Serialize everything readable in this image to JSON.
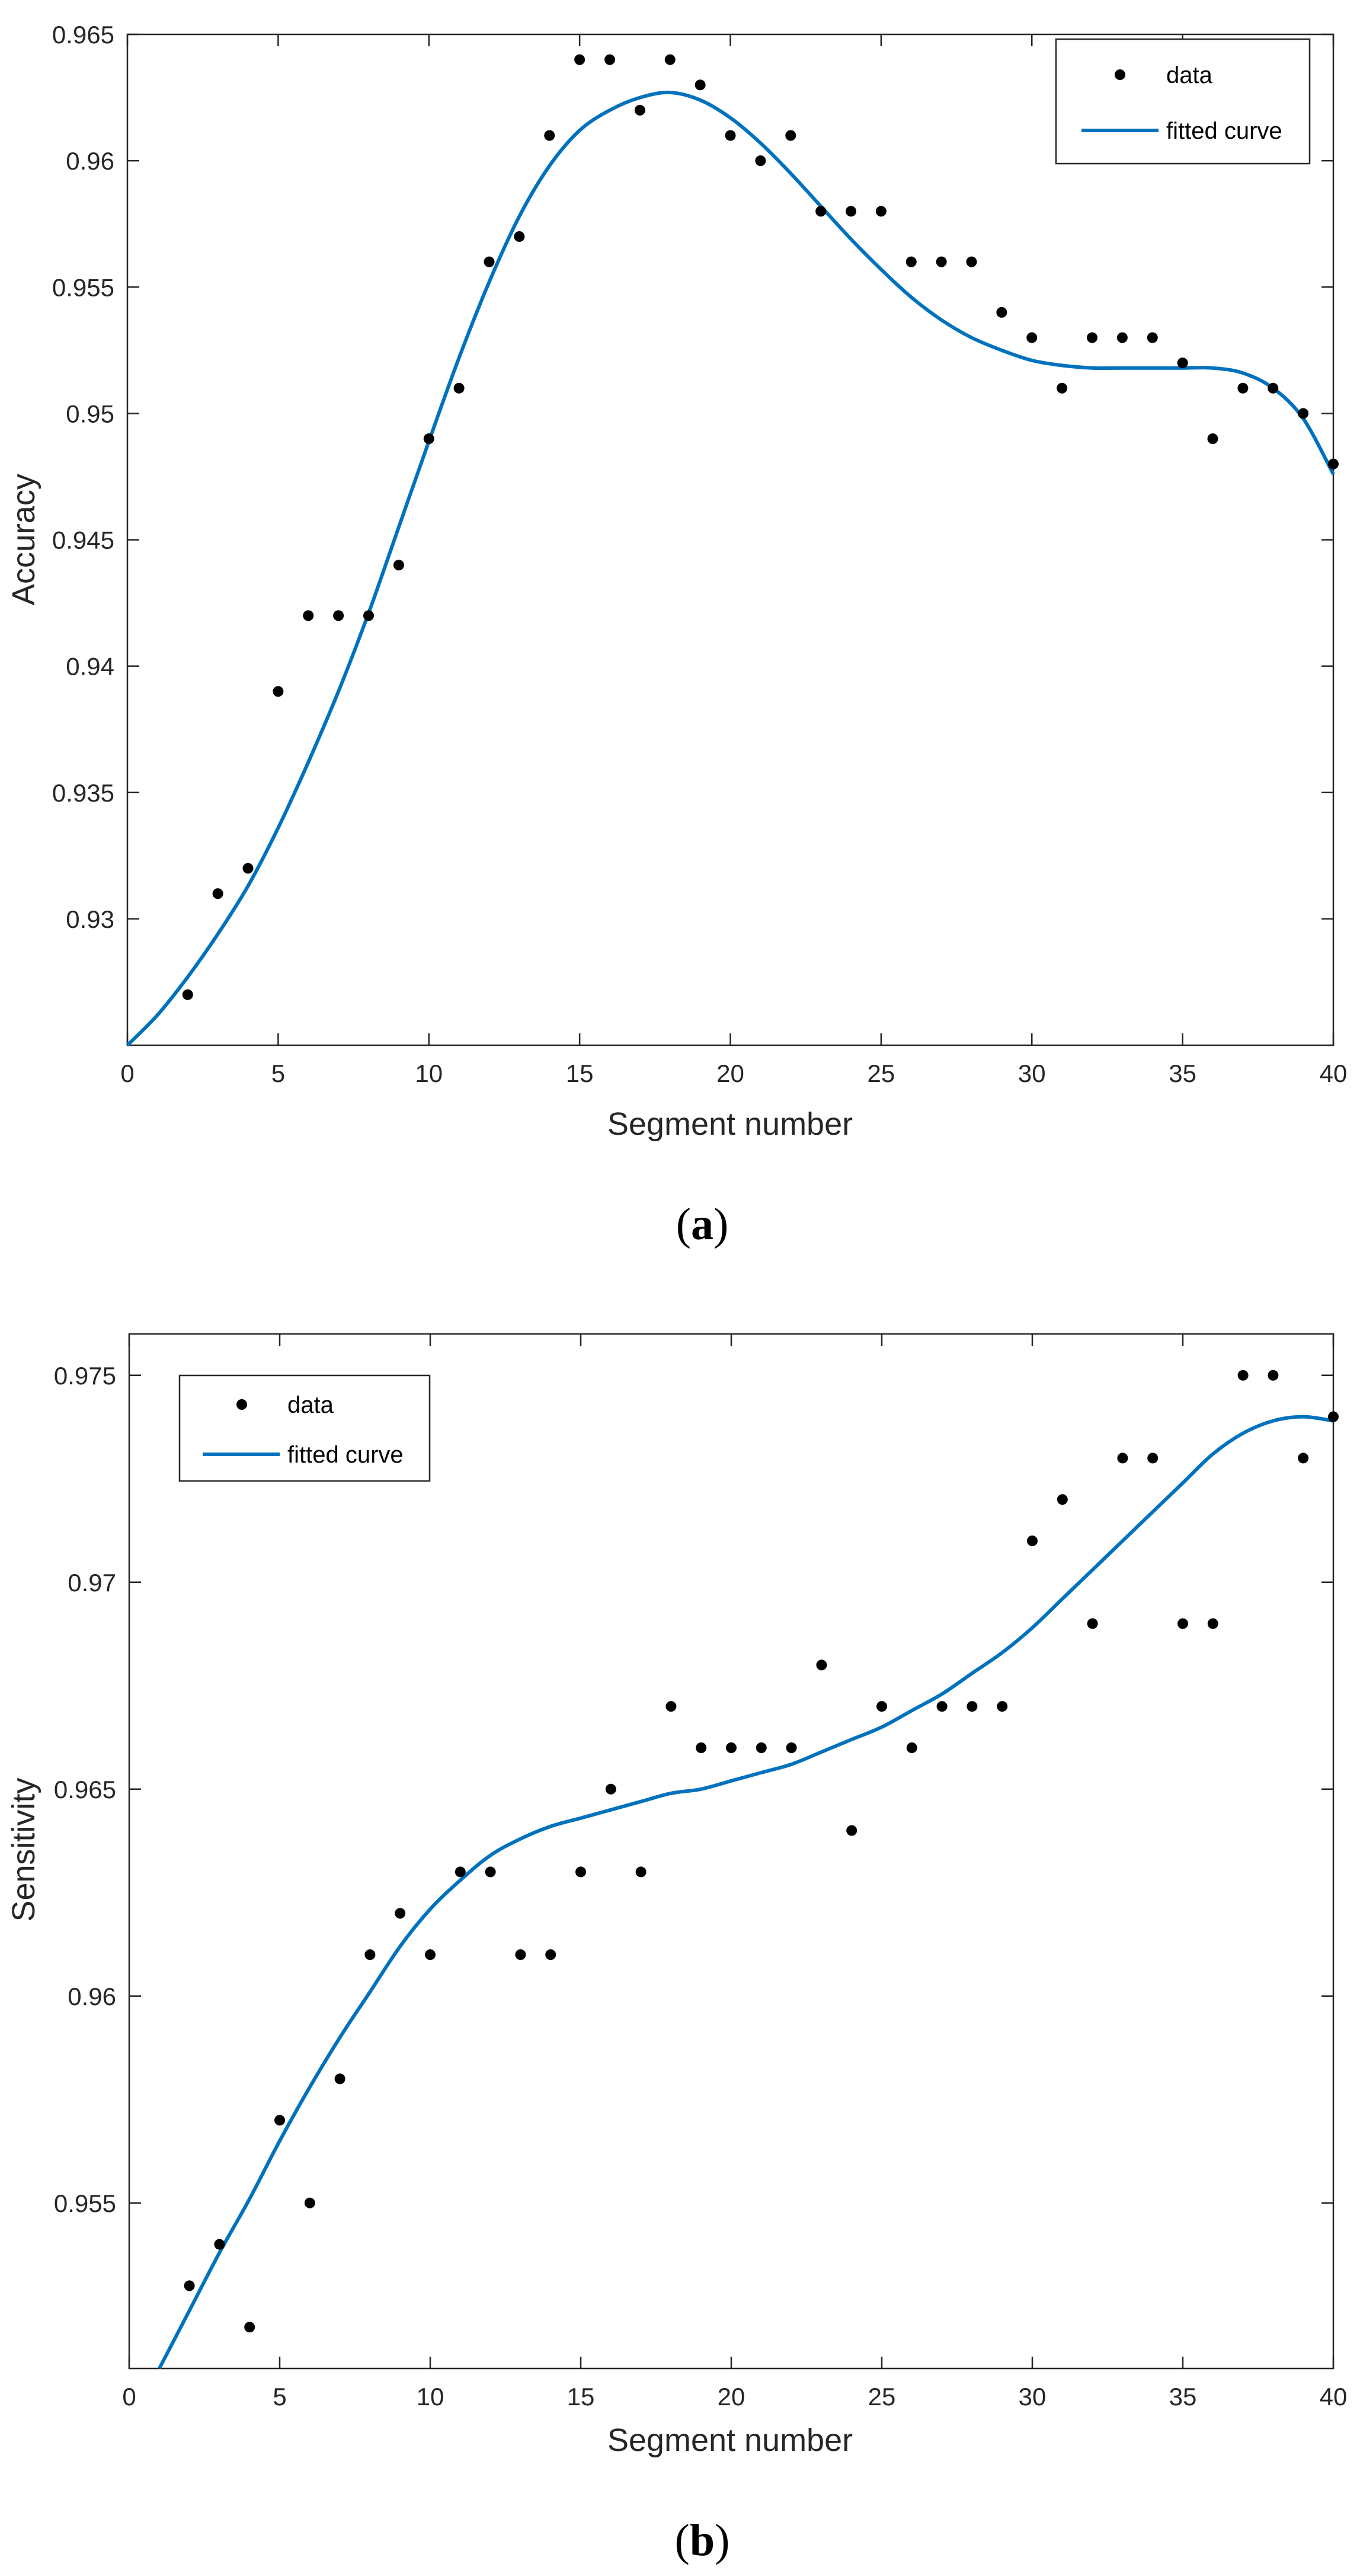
{
  "chart_data": [
    {
      "type": "scatter",
      "caption_letter": "a",
      "xlabel": "Segment number",
      "ylabel": "Accuracy",
      "xlim": [
        0,
        40
      ],
      "ylim": [
        0.925,
        0.965
      ],
      "xticks": [
        0,
        5,
        10,
        15,
        20,
        25,
        30,
        35,
        40
      ],
      "yticks": [
        0.93,
        0.935,
        0.94,
        0.945,
        0.95,
        0.955,
        0.96,
        0.965
      ],
      "legend_position": "top-right",
      "legend": {
        "data_label": "data",
        "fit_label": "fitted curve"
      },
      "series": [
        {
          "name": "data",
          "x": [
            2,
            3,
            4,
            5,
            6,
            7,
            8,
            9,
            10,
            11,
            12,
            13,
            14,
            15,
            16,
            17,
            18,
            19,
            20,
            21,
            22,
            23,
            24,
            25,
            26,
            27,
            28,
            29,
            30,
            31,
            32,
            33,
            34,
            35,
            36,
            37,
            38,
            39,
            40
          ],
          "y": [
            0.927,
            0.931,
            0.932,
            0.939,
            0.942,
            0.942,
            0.942,
            0.944,
            0.949,
            0.951,
            0.956,
            0.957,
            0.961,
            0.964,
            0.964,
            0.962,
            0.964,
            0.963,
            0.961,
            0.96,
            0.961,
            0.958,
            0.958,
            0.958,
            0.956,
            0.956,
            0.956,
            0.954,
            0.953,
            0.951,
            0.953,
            0.953,
            0.953,
            0.952,
            0.949,
            0.951,
            0.951,
            0.95,
            0.948
          ]
        },
        {
          "name": "fitted curve",
          "x": [
            0,
            1,
            2,
            3,
            4,
            5,
            6,
            7,
            8,
            9,
            10,
            11,
            12,
            13,
            14,
            15,
            16,
            17,
            18,
            19,
            20,
            21,
            22,
            23,
            24,
            25,
            26,
            27,
            28,
            29,
            30,
            31,
            32,
            33,
            34,
            35,
            36,
            37,
            38,
            39,
            40
          ],
          "y": [
            0.925,
            0.9262,
            0.9277,
            0.9294,
            0.9313,
            0.9336,
            0.9362,
            0.939,
            0.9421,
            0.9455,
            0.9489,
            0.9522,
            0.9552,
            0.9578,
            0.9598,
            0.9612,
            0.962,
            0.9625,
            0.9627,
            0.9624,
            0.9617,
            0.9607,
            0.9595,
            0.9582,
            0.9569,
            0.9557,
            0.9546,
            0.9537,
            0.953,
            0.9525,
            0.9521,
            0.9519,
            0.9518,
            0.9518,
            0.9518,
            0.9518,
            0.9518,
            0.9516,
            0.951,
            0.9498,
            0.9476
          ]
        }
      ]
    },
    {
      "type": "scatter",
      "caption_letter": "b",
      "xlabel": "Segment number",
      "ylabel": "Sensitivity",
      "xlim": [
        0,
        40
      ],
      "ylim": [
        0.951,
        0.976
      ],
      "xticks": [
        0,
        5,
        10,
        15,
        20,
        25,
        30,
        35,
        40
      ],
      "yticks": [
        0.955,
        0.96,
        0.965,
        0.97,
        0.975
      ],
      "legend_position": "top-left",
      "legend": {
        "data_label": "data",
        "fit_label": "fitted curve"
      },
      "series": [
        {
          "name": "data",
          "x": [
            2,
            3,
            4,
            5,
            6,
            7,
            8,
            9,
            10,
            11,
            12,
            13,
            14,
            15,
            16,
            17,
            18,
            19,
            20,
            21,
            22,
            23,
            24,
            25,
            26,
            27,
            28,
            29,
            30,
            31,
            32,
            33,
            34,
            35,
            36,
            37,
            38,
            39,
            40
          ],
          "y": [
            0.953,
            0.954,
            0.952,
            0.957,
            0.955,
            0.958,
            0.961,
            0.962,
            0.961,
            0.963,
            0.963,
            0.961,
            0.961,
            0.963,
            0.965,
            0.963,
            0.967,
            0.966,
            0.966,
            0.966,
            0.966,
            0.968,
            0.964,
            0.967,
            0.966,
            0.967,
            0.967,
            0.967,
            0.971,
            0.972,
            0.969,
            0.973,
            0.973,
            0.969,
            0.969,
            0.975,
            0.975,
            0.973,
            0.974
          ]
        },
        {
          "name": "fitted curve",
          "x": [
            1,
            2,
            3,
            4,
            5,
            6,
            7,
            8,
            9,
            10,
            11,
            12,
            13,
            14,
            15,
            16,
            17,
            18,
            19,
            20,
            21,
            22,
            23,
            24,
            25,
            26,
            27,
            28,
            29,
            30,
            31,
            32,
            33,
            34,
            35,
            36,
            37,
            38,
            39,
            40
          ],
          "y": [
            0.951,
            0.9524,
            0.9538,
            0.9551,
            0.9565,
            0.9578,
            0.959,
            0.9601,
            0.9612,
            0.9621,
            0.9628,
            0.9634,
            0.9638,
            0.9641,
            0.9643,
            0.9645,
            0.9647,
            0.9649,
            0.965,
            0.9652,
            0.9654,
            0.9656,
            0.9659,
            0.9662,
            0.9665,
            0.9669,
            0.9673,
            0.9678,
            0.9683,
            0.9689,
            0.9696,
            0.9703,
            0.971,
            0.9717,
            0.9724,
            0.9731,
            0.9736,
            0.9739,
            0.974,
            0.9739
          ]
        }
      ]
    }
  ],
  "colors": {
    "fit_line": "#0072BD",
    "marker": "#000000",
    "axis": "#262626"
  }
}
